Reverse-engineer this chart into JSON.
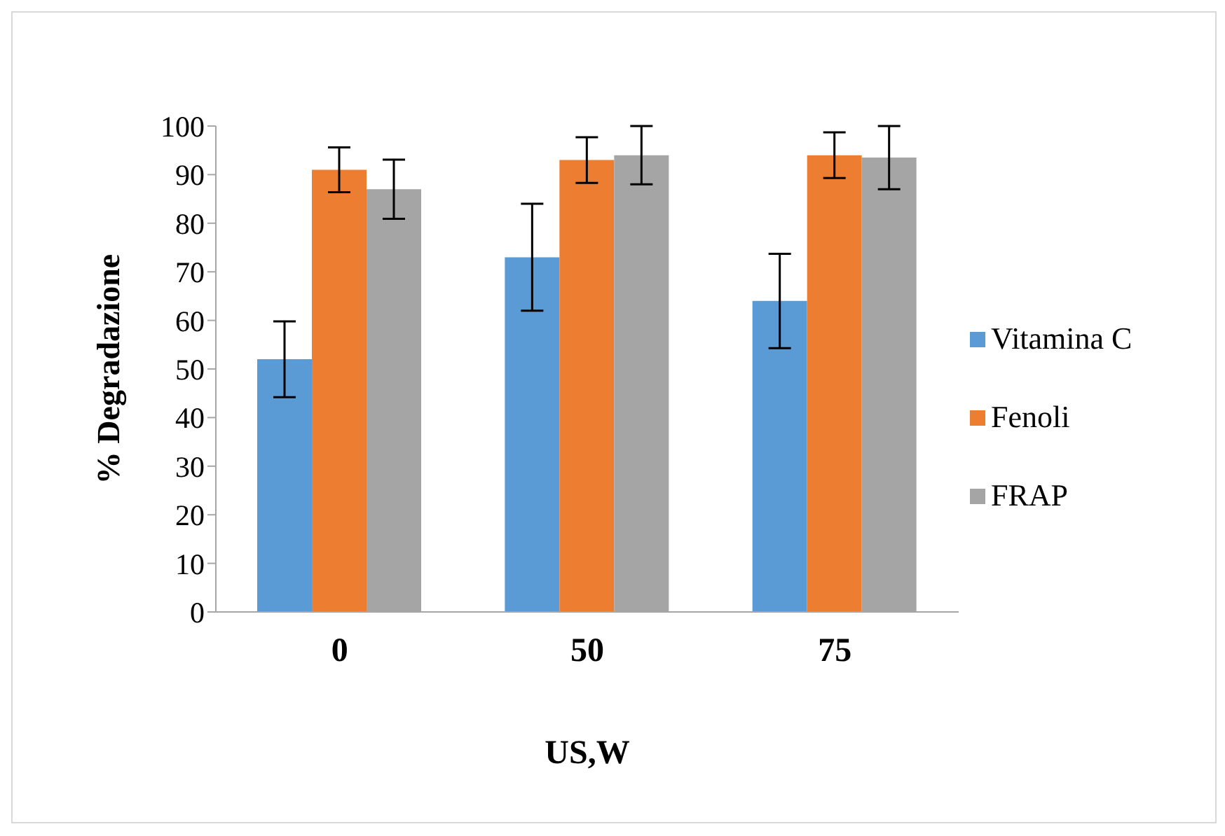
{
  "chart_data": {
    "type": "bar",
    "xlabel": "US,W",
    "ylabel": "% Degradazione",
    "categories": [
      "0",
      "50",
      "75"
    ],
    "series": [
      {
        "name": "Vitamina C",
        "color": "#5b9bd5",
        "values": [
          52,
          73,
          64
        ],
        "errors": [
          7.8,
          11,
          9.7
        ]
      },
      {
        "name": "Fenoli",
        "color": "#ed7d31",
        "values": [
          91,
          93,
          94
        ],
        "errors": [
          4.6,
          4.7,
          4.7
        ]
      },
      {
        "name": "FRAP",
        "color": "#a5a5a5",
        "values": [
          87,
          94,
          93.5
        ],
        "errors": [
          6.1,
          6,
          6.5
        ]
      }
    ],
    "ylim": [
      0,
      100
    ],
    "yticks": [
      0,
      10,
      20,
      30,
      40,
      50,
      60,
      70,
      80,
      90,
      100
    ],
    "grid": false,
    "legend": "right"
  }
}
